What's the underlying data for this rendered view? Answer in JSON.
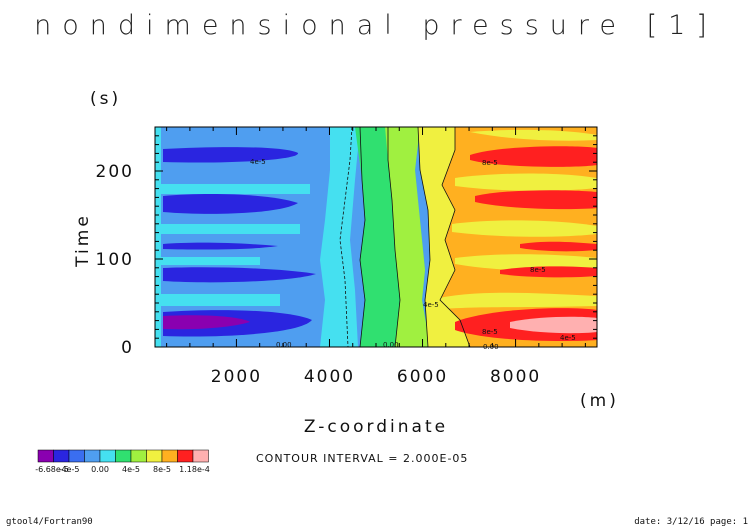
{
  "chart_data": {
    "type": "heatmap",
    "title": "nondimensional pressure [1]",
    "xlabel": "Z-coordinate",
    "xunit": "(m)",
    "ylabel": "Time",
    "yunit": "(s)",
    "xlim": [
      250,
      9750
    ],
    "ylim": [
      0,
      250
    ],
    "xticks": [
      "2000",
      "4000",
      "6000",
      "8000"
    ],
    "xtick_values": [
      2000,
      4000,
      6000,
      8000
    ],
    "yticks": [
      "0",
      "100",
      "200"
    ],
    "ytick_values": [
      0,
      100,
      200
    ],
    "contour_labels": [
      "4e-5",
      "8e-5",
      "0.00",
      "4e-5",
      "8e-5",
      "0.00",
      "0.00",
      "4e-5",
      "8e-5"
    ],
    "legend": {
      "colors": [
        "#8a00b0",
        "#2a25e0",
        "#3a6ef0",
        "#4f9ef0",
        "#45e0f0",
        "#30e070",
        "#a0f040",
        "#f0f040",
        "#ffb020",
        "#ff2020",
        "#ffb0b0"
      ],
      "labels": [
        "-6.68e-5",
        "-4e-5",
        "0.00",
        "4e-5",
        "8e-5",
        "1.18e-4"
      ]
    },
    "contour_interval": "CONTOUR INTERVAL = 2.000E-05"
  },
  "footer": {
    "left": "gtool4/Fortran90",
    "right": "date: 3/12/16 page: 1"
  }
}
